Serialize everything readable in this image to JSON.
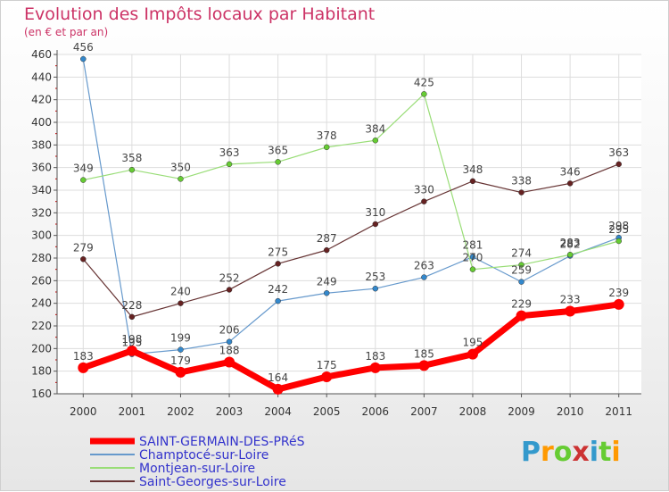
{
  "header": {
    "title": "Evolution des Impôts locaux par Habitant",
    "subtitle": "(en € et par an)"
  },
  "logo": {
    "text": "Proxiti",
    "letters": [
      "P",
      "r",
      "o",
      "x",
      "i",
      "t",
      "i"
    ],
    "colors": [
      "#3399cc",
      "#ff9900",
      "#66cc33",
      "#cc3333",
      "#3399cc",
      "#66cc33",
      "#ff9900"
    ]
  },
  "chart_data": {
    "type": "line",
    "title": "Evolution des Impôts locaux par Habitant",
    "subtitle": "(en € et par an)",
    "xlabel": "",
    "ylabel": "",
    "x": [
      "2000",
      "2001",
      "2002",
      "2003",
      "2004",
      "2005",
      "2006",
      "2007",
      "2008",
      "2009",
      "2010",
      "2011"
    ],
    "yticks": [
      160,
      180,
      200,
      220,
      240,
      260,
      280,
      300,
      320,
      340,
      360,
      380,
      400,
      420,
      440,
      460
    ],
    "ylim": [
      160,
      460
    ],
    "grid": true,
    "legend_position": "bottom-left",
    "series": [
      {
        "name": "Champtocé-sur-Loire",
        "color": "#6699cc",
        "marker": "#3388cc",
        "width": 1.2,
        "values": [
          456,
          195,
          199,
          206,
          242,
          249,
          253,
          263,
          281,
          259,
          282,
          298
        ],
        "labels": [
          "456",
          "195",
          "199",
          "206",
          "242",
          "249",
          "253",
          "263",
          "281",
          "259",
          "282",
          "298"
        ]
      },
      {
        "name": "Montjean-sur-Loire",
        "color": "#99dd77",
        "marker": "#66cc33",
        "width": 1.2,
        "values": [
          349,
          358,
          350,
          363,
          365,
          378,
          384,
          425,
          270,
          274,
          283,
          295
        ],
        "labels": [
          "349",
          "358",
          "350",
          "363",
          "365",
          "378",
          "384",
          "425",
          "270",
          "274",
          "283",
          "295"
        ]
      },
      {
        "name": "Saint-Georges-sur-Loire",
        "color": "#663333",
        "marker": "#662222",
        "width": 1.2,
        "values": [
          279,
          228,
          240,
          252,
          275,
          287,
          310,
          330,
          348,
          338,
          346,
          363
        ],
        "labels": [
          "279",
          "228",
          "240",
          "252",
          "275",
          "287",
          "310",
          "330",
          "348",
          "338",
          "346",
          "363"
        ]
      },
      {
        "name": "SAINT-GERMAIN-DES-PRéS",
        "color": "#ff0000",
        "marker": "#ff0000",
        "width": 7,
        "values": [
          183,
          198,
          179,
          188,
          164,
          175,
          183,
          185,
          195,
          229,
          233,
          239
        ],
        "labels": [
          "183",
          "198",
          "179",
          "188",
          "164",
          "175",
          "183",
          "185",
          "195",
          "229",
          "233",
          "239"
        ]
      }
    ],
    "legend": [
      {
        "name": "SAINT-GERMAIN-DES-PRéS",
        "color": "#ff0000",
        "thick": true
      },
      {
        "name": "Champtocé-sur-Loire",
        "color": "#6699cc",
        "thick": false
      },
      {
        "name": "Montjean-sur-Loire",
        "color": "#99dd77",
        "thick": false
      },
      {
        "name": "Saint-Georges-sur-Loire",
        "color": "#663333",
        "thick": false
      }
    ],
    "legend_text_color": "#3333cc"
  }
}
